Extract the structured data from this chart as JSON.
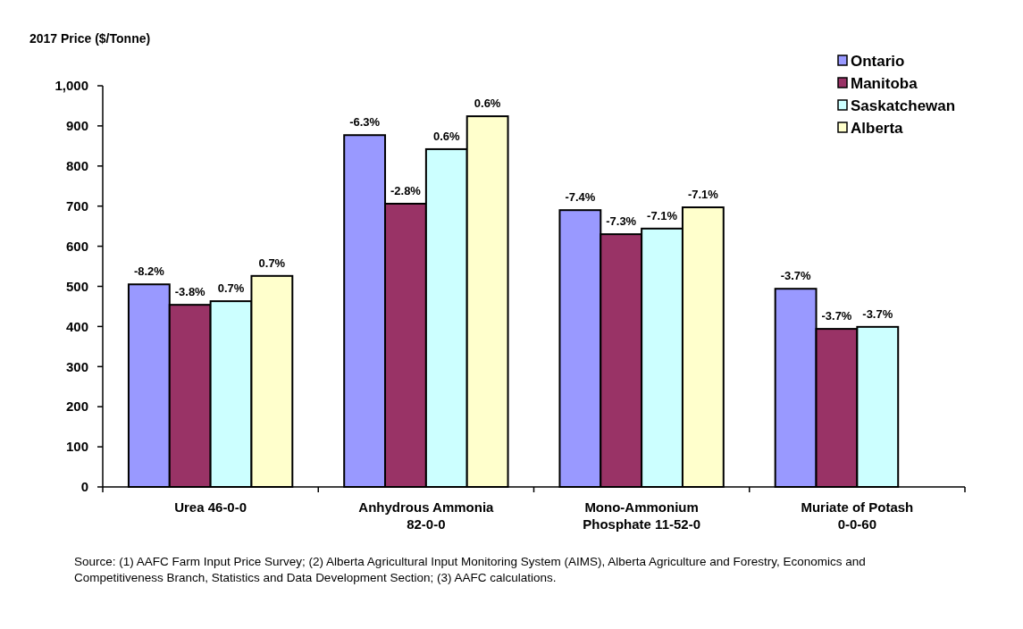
{
  "chart_data": {
    "type": "bar",
    "ylabel": "2017 Price ($/Tonne)",
    "categories": [
      "Urea 46-0-0",
      "Anhydrous Ammonia\n82-0-0",
      "Mono-Ammonium\nPhosphate 11-52-0",
      "Muriate of Potash\n0-0-60"
    ],
    "series": [
      {
        "name": "Ontario",
        "color": "#9999ff",
        "values": [
          505,
          877,
          690,
          494
        ]
      },
      {
        "name": "Manitoba",
        "color": "#993366",
        "values": [
          454,
          706,
          630,
          394
        ]
      },
      {
        "name": "Saskatchewan",
        "color": "#ccffff",
        "values": [
          463,
          842,
          644,
          399
        ]
      },
      {
        "name": "Alberta",
        "color": "#ffffcc",
        "values": [
          526,
          924,
          697,
          null
        ]
      }
    ],
    "ylim": [
      0,
      1000
    ],
    "yticks": [
      0,
      {
        "value": 100,
        "label": "100"
      },
      200,
      300,
      400,
      500,
      600,
      700,
      800,
      900,
      {
        "value": 1000,
        "label": "1,000"
      }
    ],
    "grid": false,
    "legend": "top right",
    "annotations": [
      "-8.2%",
      "-3.8%",
      "0.7%",
      "0.7%",
      "-6.3%",
      "-2.8%",
      "0.6%",
      "0.6%",
      "-7.4%",
      "-7.3%",
      "-7.1%",
      "-7.1%",
      "-3.7%",
      "-3.7%",
      "-3.7%",
      "Source: (1) AAFC Farm Input Price Survey; (2) Alberta Agricultural Input Monitoring System (AIMS), Alberta Agriculture and Forestry, Economics and Competitiveness Branch, Statistics and Data Development Section; (3) AAFC calculations."
    ]
  }
}
